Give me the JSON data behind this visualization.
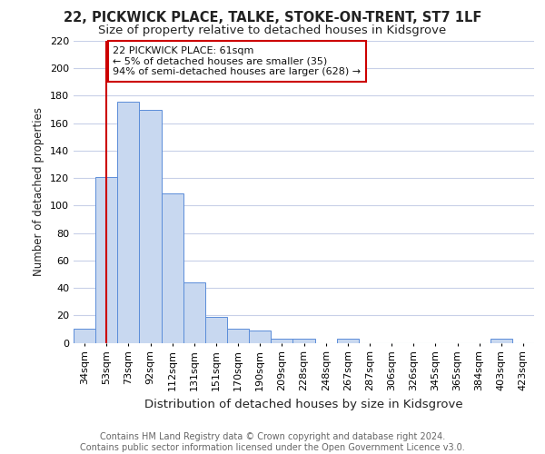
{
  "title1": "22, PICKWICK PLACE, TALKE, STOKE-ON-TRENT, ST7 1LF",
  "title2": "Size of property relative to detached houses in Kidsgrove",
  "xlabel": "Distribution of detached houses by size in Kidsgrove",
  "ylabel": "Number of detached properties",
  "categories": [
    "34sqm",
    "53sqm",
    "73sqm",
    "92sqm",
    "112sqm",
    "131sqm",
    "151sqm",
    "170sqm",
    "190sqm",
    "209sqm",
    "228sqm",
    "248sqm",
    "267sqm",
    "287sqm",
    "306sqm",
    "326sqm",
    "345sqm",
    "365sqm",
    "384sqm",
    "403sqm",
    "423sqm"
  ],
  "values": [
    10,
    121,
    176,
    170,
    109,
    44,
    19,
    10,
    9,
    3,
    3,
    0,
    3,
    0,
    0,
    0,
    0,
    0,
    0,
    3,
    0
  ],
  "bar_color": "#c8d8f0",
  "bar_edge_color": "#5b8dd9",
  "vline_x": 1,
  "vline_color": "#cc0000",
  "annotation_text": "22 PICKWICK PLACE: 61sqm\n← 5% of detached houses are smaller (35)\n94% of semi-detached houses are larger (628) →",
  "annotation_box_color": "white",
  "annotation_box_edge": "#cc0000",
  "ylim": [
    0,
    220
  ],
  "yticks": [
    0,
    20,
    40,
    60,
    80,
    100,
    120,
    140,
    160,
    180,
    200,
    220
  ],
  "background_color": "#ffffff",
  "grid_color": "#c8d0e8",
  "footer": "Contains HM Land Registry data © Crown copyright and database right 2024.\nContains public sector information licensed under the Open Government Licence v3.0.",
  "title1_fontsize": 10.5,
  "title2_fontsize": 9.5,
  "xlabel_fontsize": 9.5,
  "ylabel_fontsize": 8.5,
  "tick_fontsize": 8,
  "footer_fontsize": 7,
  "annotation_fontsize": 8
}
